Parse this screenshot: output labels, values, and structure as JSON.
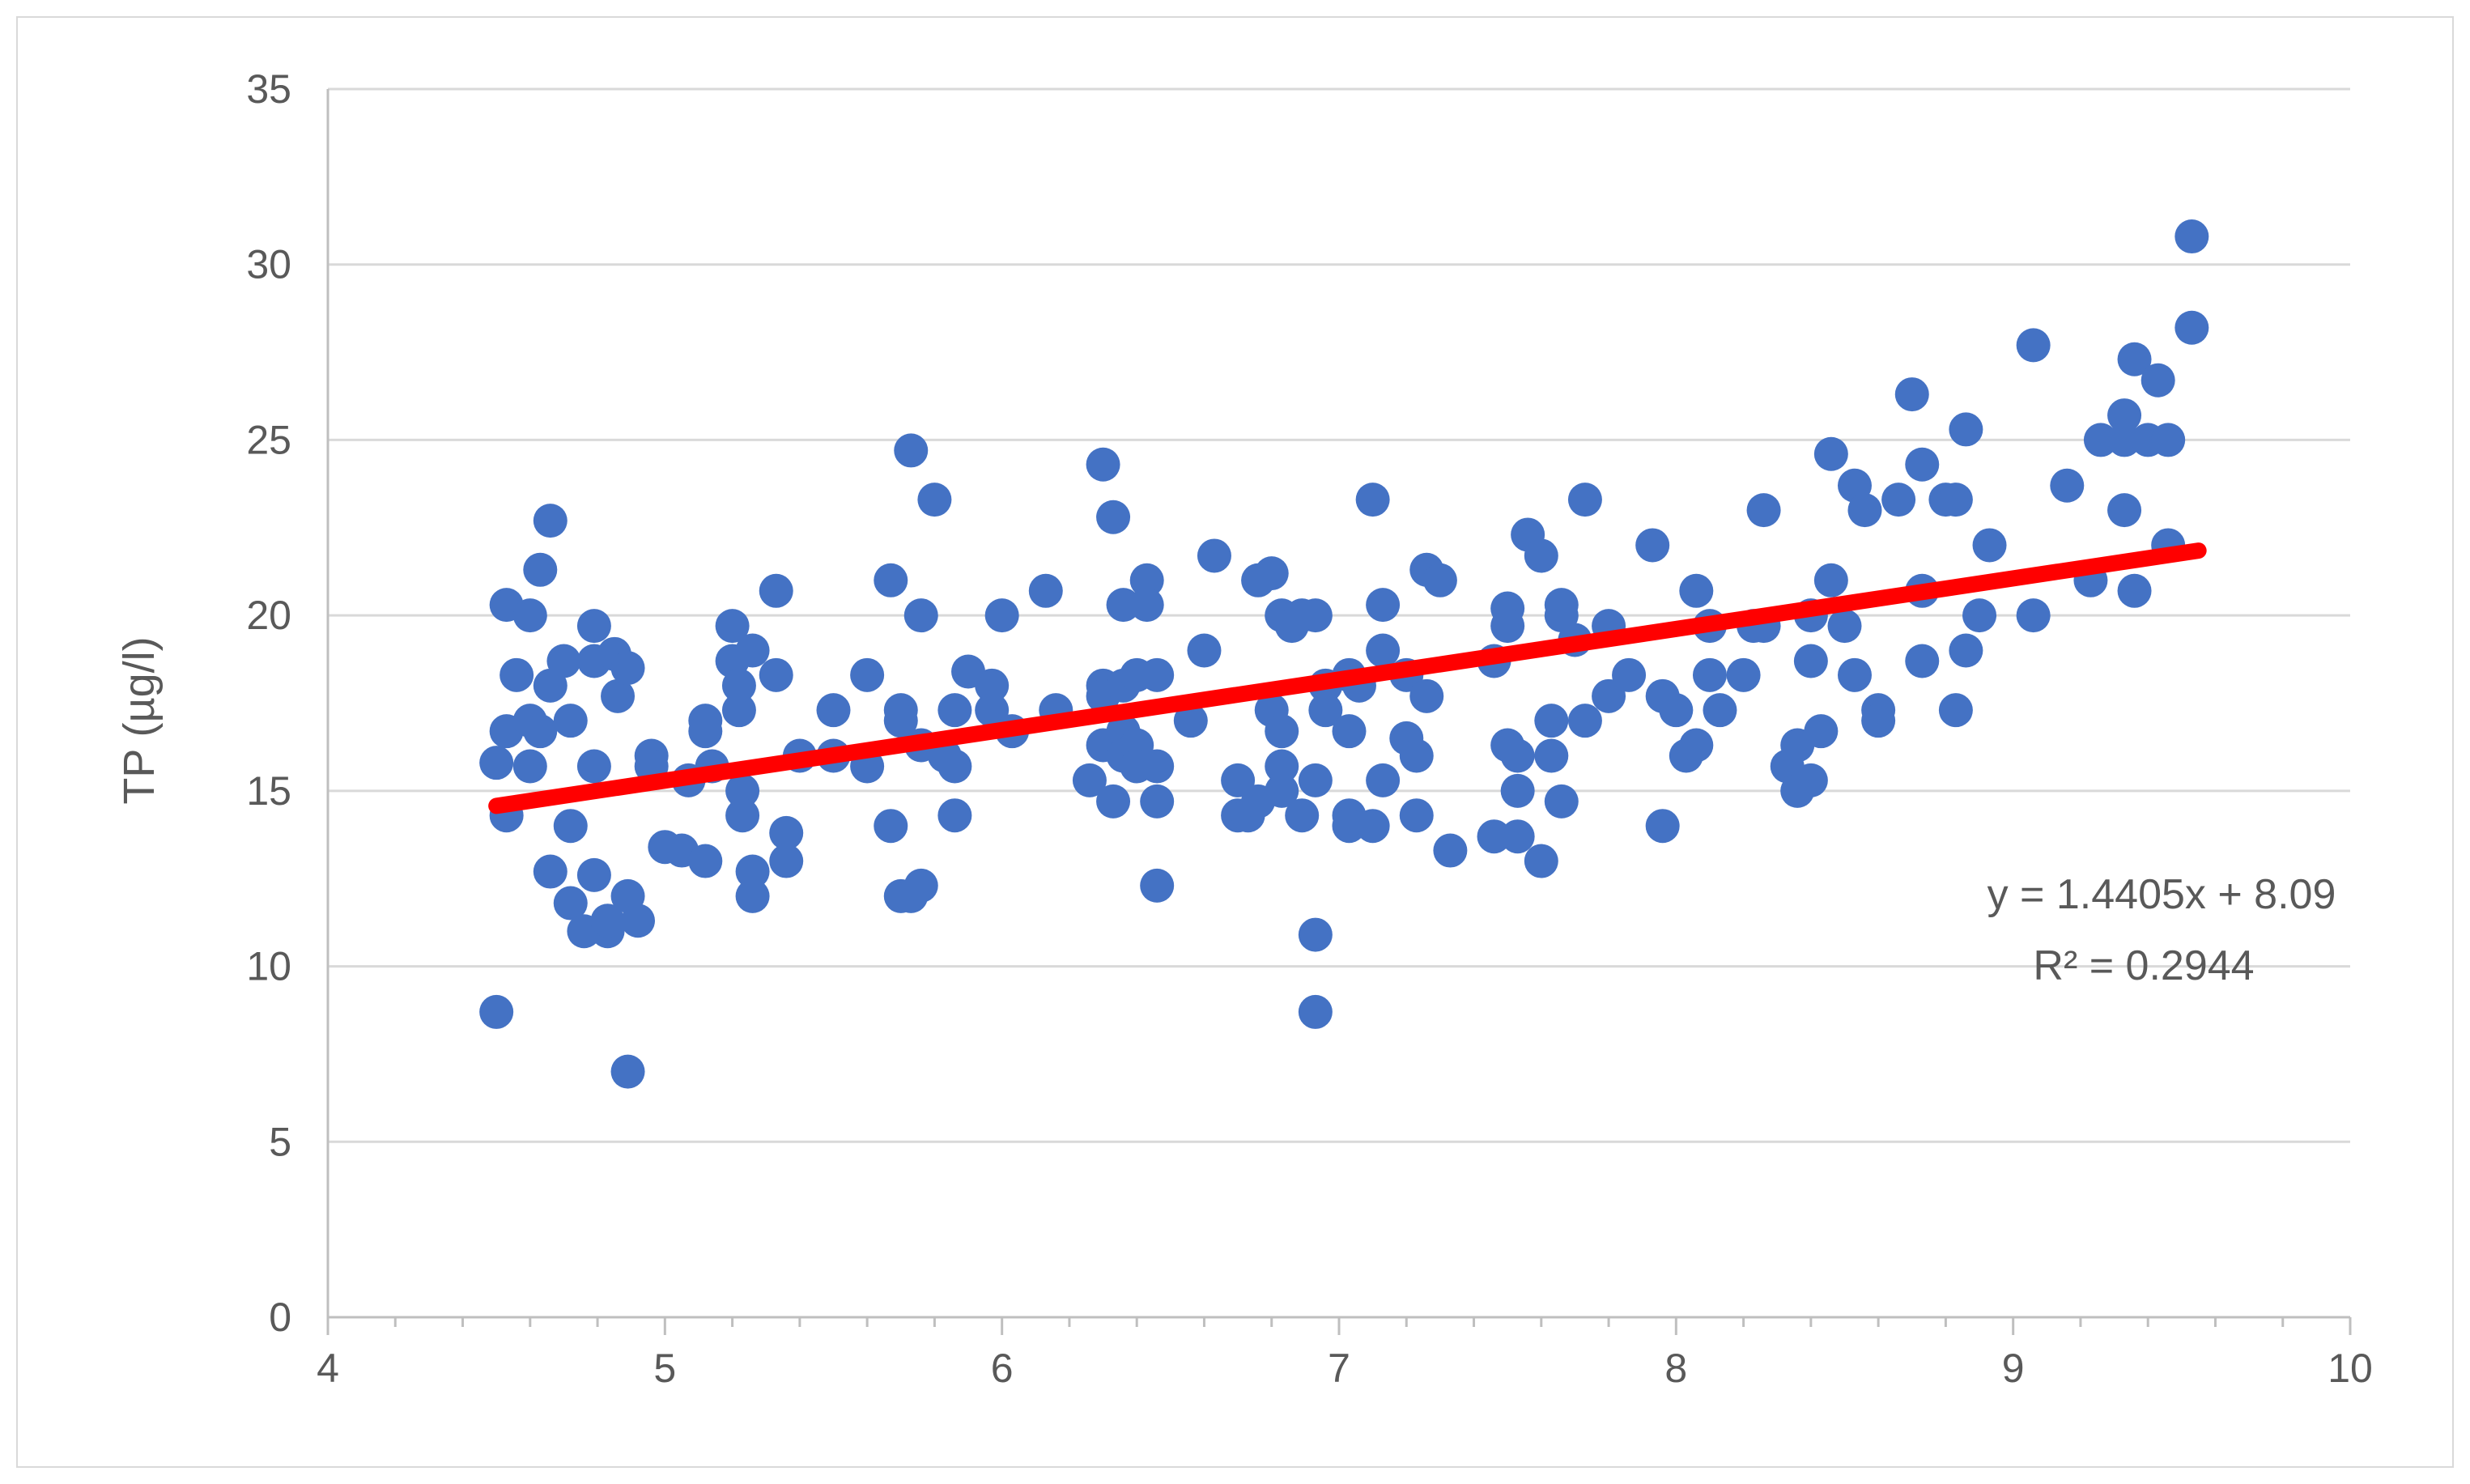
{
  "chart_data": {
    "type": "scatter",
    "title": "",
    "xlabel": "",
    "ylabel": "TP (µg/l)",
    "xlim": [
      4,
      10
    ],
    "ylim": [
      0,
      35
    ],
    "x_ticks": [
      "4",
      "5",
      "6",
      "7",
      "8",
      "9",
      "10"
    ],
    "y_ticks": [
      "0",
      "5",
      "10",
      "15",
      "20",
      "25",
      "30",
      "35"
    ],
    "x_minor_step": 0.2,
    "grid": "horizontal",
    "legend": "none",
    "colors": {
      "points": "#4472c4",
      "trendline": "#ff0000",
      "grid": "#d9d9d9",
      "axis": "#bfbfbf",
      "text": "#595959"
    },
    "trendline": {
      "type": "linear",
      "slope": 1.4405,
      "intercept": 8.09,
      "x_range": [
        4.5,
        9.55
      ],
      "equation": "y = 1.4405x + 8.09",
      "r_squared": "R² = 0.2944"
    },
    "series": [
      {
        "points": [
          [
            4.5,
            8.7
          ],
          [
            4.5,
            15.8
          ],
          [
            4.53,
            20.3
          ],
          [
            4.53,
            16.7
          ],
          [
            4.53,
            14.3
          ],
          [
            4.56,
            18.3
          ],
          [
            4.6,
            20.0
          ],
          [
            4.6,
            15.7
          ],
          [
            4.6,
            17.0
          ],
          [
            4.63,
            21.3
          ],
          [
            4.63,
            16.7
          ],
          [
            4.66,
            22.7
          ],
          [
            4.66,
            18.0
          ],
          [
            4.66,
            12.7
          ],
          [
            4.7,
            18.7
          ],
          [
            4.72,
            14.0
          ],
          [
            4.72,
            17.0
          ],
          [
            4.72,
            11.8
          ],
          [
            4.76,
            11.0
          ],
          [
            4.79,
            19.7
          ],
          [
            4.79,
            18.7
          ],
          [
            4.79,
            15.7
          ],
          [
            4.79,
            12.6
          ],
          [
            4.83,
            11.0
          ],
          [
            4.83,
            11.3
          ],
          [
            4.85,
            18.9
          ],
          [
            4.86,
            17.7
          ],
          [
            4.89,
            18.5
          ],
          [
            4.89,
            12.0
          ],
          [
            4.89,
            7.0
          ],
          [
            4.92,
            11.3
          ],
          [
            4.96,
            16.0
          ],
          [
            4.96,
            15.7
          ],
          [
            5.0,
            13.4
          ],
          [
            5.05,
            13.3
          ],
          [
            5.07,
            15.3
          ],
          [
            5.12,
            17.0
          ],
          [
            5.12,
            16.7
          ],
          [
            5.12,
            13.0
          ],
          [
            5.14,
            15.7
          ],
          [
            5.2,
            19.7
          ],
          [
            5.2,
            18.7
          ],
          [
            5.22,
            17.3
          ],
          [
            5.22,
            18.0
          ],
          [
            5.23,
            15.0
          ],
          [
            5.23,
            14.3
          ],
          [
            5.26,
            19.0
          ],
          [
            5.26,
            12.7
          ],
          [
            5.26,
            12.0
          ],
          [
            5.33,
            20.7
          ],
          [
            5.33,
            18.3
          ],
          [
            5.36,
            13.8
          ],
          [
            5.36,
            13.0
          ],
          [
            5.4,
            16.0
          ],
          [
            5.5,
            17.3
          ],
          [
            5.5,
            16.0
          ],
          [
            5.6,
            18.3
          ],
          [
            5.6,
            15.7
          ],
          [
            5.67,
            21.0
          ],
          [
            5.67,
            14.0
          ],
          [
            5.7,
            17.3
          ],
          [
            5.7,
            17.0
          ],
          [
            5.7,
            12.0
          ],
          [
            5.73,
            24.7
          ],
          [
            5.73,
            12.0
          ],
          [
            5.76,
            20.0
          ],
          [
            5.76,
            16.3
          ],
          [
            5.76,
            12.3
          ],
          [
            5.8,
            23.3
          ],
          [
            5.83,
            16.0
          ],
          [
            5.86,
            17.3
          ],
          [
            5.86,
            15.7
          ],
          [
            5.86,
            14.3
          ],
          [
            5.9,
            18.4
          ],
          [
            5.97,
            18.0
          ],
          [
            5.97,
            17.3
          ],
          [
            6.0,
            20.0
          ],
          [
            6.03,
            16.7
          ],
          [
            6.13,
            20.7
          ],
          [
            6.16,
            17.3
          ],
          [
            6.26,
            15.3
          ],
          [
            6.3,
            24.3
          ],
          [
            6.3,
            18.0
          ],
          [
            6.3,
            17.7
          ],
          [
            6.3,
            16.3
          ],
          [
            6.33,
            22.8
          ],
          [
            6.33,
            14.7
          ],
          [
            6.36,
            20.3
          ],
          [
            6.36,
            18.0
          ],
          [
            6.36,
            16.7
          ],
          [
            6.36,
            16.0
          ],
          [
            6.4,
            18.3
          ],
          [
            6.4,
            16.3
          ],
          [
            6.4,
            15.7
          ],
          [
            6.43,
            21.0
          ],
          [
            6.43,
            20.3
          ],
          [
            6.46,
            18.3
          ],
          [
            6.46,
            15.7
          ],
          [
            6.46,
            14.7
          ],
          [
            6.46,
            12.3
          ],
          [
            6.56,
            17.0
          ],
          [
            6.6,
            19.0
          ],
          [
            6.63,
            21.7
          ],
          [
            6.7,
            15.3
          ],
          [
            6.7,
            14.3
          ],
          [
            6.73,
            14.3
          ],
          [
            6.76,
            21.0
          ],
          [
            6.76,
            14.7
          ],
          [
            6.8,
            21.2
          ],
          [
            6.8,
            17.3
          ],
          [
            6.83,
            20.0
          ],
          [
            6.83,
            16.7
          ],
          [
            6.83,
            15.7
          ],
          [
            6.83,
            15.0
          ],
          [
            6.86,
            19.7
          ],
          [
            6.89,
            20.0
          ],
          [
            6.89,
            14.3
          ],
          [
            6.93,
            20.0
          ],
          [
            6.93,
            15.3
          ],
          [
            6.93,
            10.9
          ],
          [
            6.93,
            8.7
          ],
          [
            6.96,
            18.0
          ],
          [
            6.96,
            17.3
          ],
          [
            7.03,
            18.3
          ],
          [
            7.03,
            16.7
          ],
          [
            7.03,
            14.3
          ],
          [
            7.03,
            14.0
          ],
          [
            7.06,
            18.0
          ],
          [
            7.1,
            23.3
          ],
          [
            7.1,
            14.0
          ],
          [
            7.13,
            20.3
          ],
          [
            7.13,
            19.0
          ],
          [
            7.13,
            15.3
          ],
          [
            7.2,
            18.3
          ],
          [
            7.2,
            16.5
          ],
          [
            7.23,
            16.0
          ],
          [
            7.23,
            14.3
          ],
          [
            7.26,
            21.3
          ],
          [
            7.26,
            17.7
          ],
          [
            7.3,
            21.0
          ],
          [
            7.33,
            13.3
          ],
          [
            7.46,
            18.7
          ],
          [
            7.46,
            13.7
          ],
          [
            7.5,
            20.2
          ],
          [
            7.5,
            19.7
          ],
          [
            7.5,
            16.3
          ],
          [
            7.53,
            16.0
          ],
          [
            7.53,
            15.0
          ],
          [
            7.53,
            13.7
          ],
          [
            7.56,
            22.3
          ],
          [
            7.6,
            21.7
          ],
          [
            7.6,
            13.0
          ],
          [
            7.63,
            17.0
          ],
          [
            7.63,
            16.0
          ],
          [
            7.66,
            20.3
          ],
          [
            7.66,
            20.0
          ],
          [
            7.66,
            14.7
          ],
          [
            7.7,
            19.3
          ],
          [
            7.73,
            23.3
          ],
          [
            7.73,
            17.0
          ],
          [
            7.8,
            19.7
          ],
          [
            7.8,
            17.7
          ],
          [
            7.86,
            18.3
          ],
          [
            7.93,
            22.0
          ],
          [
            7.96,
            17.7
          ],
          [
            7.96,
            14.0
          ],
          [
            8.0,
            17.3
          ],
          [
            8.03,
            16.0
          ],
          [
            8.06,
            20.7
          ],
          [
            8.06,
            16.3
          ],
          [
            8.1,
            19.7
          ],
          [
            8.1,
            18.3
          ],
          [
            8.13,
            17.3
          ],
          [
            8.2,
            18.3
          ],
          [
            8.23,
            19.7
          ],
          [
            8.26,
            23.0
          ],
          [
            8.26,
            19.7
          ],
          [
            8.33,
            15.7
          ],
          [
            8.36,
            16.3
          ],
          [
            8.36,
            15.0
          ],
          [
            8.4,
            20.0
          ],
          [
            8.4,
            18.7
          ],
          [
            8.4,
            15.3
          ],
          [
            8.43,
            16.7
          ],
          [
            8.46,
            24.6
          ],
          [
            8.46,
            21.0
          ],
          [
            8.5,
            19.7
          ],
          [
            8.53,
            23.7
          ],
          [
            8.53,
            18.3
          ],
          [
            8.56,
            23.0
          ],
          [
            8.6,
            17.3
          ],
          [
            8.6,
            17.0
          ],
          [
            8.66,
            23.3
          ],
          [
            8.7,
            26.3
          ],
          [
            8.73,
            24.3
          ],
          [
            8.73,
            20.7
          ],
          [
            8.73,
            18.7
          ],
          [
            8.8,
            23.3
          ],
          [
            8.83,
            23.3
          ],
          [
            8.83,
            17.3
          ],
          [
            8.86,
            25.3
          ],
          [
            8.86,
            19.0
          ],
          [
            8.9,
            20.0
          ],
          [
            8.93,
            22.0
          ],
          [
            9.06,
            27.7
          ],
          [
            9.06,
            20.0
          ],
          [
            9.16,
            23.7
          ],
          [
            9.23,
            21.0
          ],
          [
            9.26,
            25.0
          ],
          [
            9.33,
            25.7
          ],
          [
            9.33,
            25.0
          ],
          [
            9.33,
            23.0
          ],
          [
            9.36,
            27.3
          ],
          [
            9.36,
            20.7
          ],
          [
            9.4,
            25.0
          ],
          [
            9.43,
            26.7
          ],
          [
            9.46,
            25.0
          ],
          [
            9.46,
            22.0
          ],
          [
            9.53,
            30.8
          ],
          [
            9.53,
            28.2
          ]
        ]
      }
    ]
  }
}
